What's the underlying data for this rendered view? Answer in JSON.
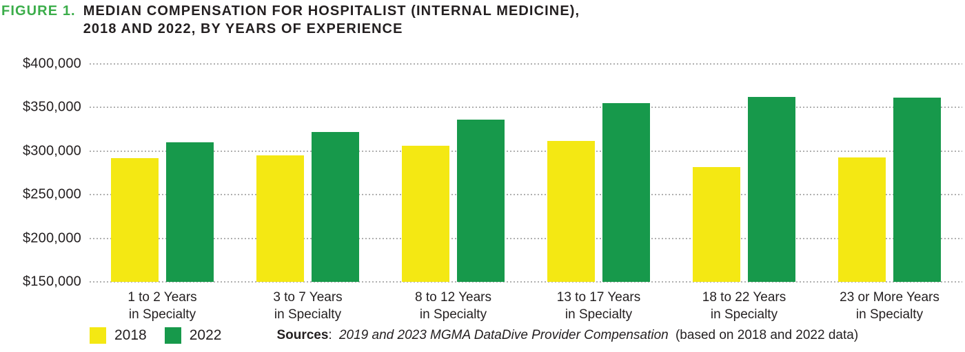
{
  "header": {
    "figure_label": "FIGURE 1.",
    "title_line1": "MEDIAN COMPENSATION FOR HOSPITALIST (INTERNAL MEDICINE),",
    "title_line2": "2018 AND 2022, BY YEARS OF EXPERIENCE"
  },
  "footer": {
    "sources_label": "Sources",
    "sources_colon": ":",
    "sources_italic": "2019 and 2023 MGMA DataDive Provider Compensation",
    "sources_suffix": "(based on 2018 and 2022 data)"
  },
  "colors": {
    "figure_label_green": "#3BAD4A",
    "series_2018_yellow": "#F4E813",
    "series_2022_green": "#17994B",
    "gridline_gray": "#AFAFAF",
    "text": "#231F20"
  },
  "chart_data": {
    "type": "bar",
    "title": "FIGURE 1. MEDIAN COMPENSATION FOR HOSPITALIST (INTERNAL MEDICINE), 2018 AND 2022, BY YEARS OF EXPERIENCE",
    "xlabel": "",
    "ylabel": "",
    "ylim": [
      150000,
      400000
    ],
    "grid": "horizontal-dotted",
    "legend_position": "bottom-left",
    "categories": [
      {
        "line1": "1 to 2 Years",
        "line2": "in Specialty"
      },
      {
        "line1": "3 to 7 Years",
        "line2": "in Specialty"
      },
      {
        "line1": "8 to 12 Years",
        "line2": "in Specialty"
      },
      {
        "line1": "13 to 17 Years",
        "line2": "in Specialty"
      },
      {
        "line1": "18 to 22 Years",
        "line2": "in Specialty"
      },
      {
        "line1": "23 or More Years",
        "line2": "in Specialty"
      }
    ],
    "series": [
      {
        "name": "2018",
        "color": "#F4E813",
        "values": [
          292000,
          295000,
          306000,
          312000,
          282000,
          293000
        ]
      },
      {
        "name": "2022",
        "color": "#17994B",
        "values": [
          310000,
          322000,
          336000,
          355000,
          362000,
          361000
        ]
      }
    ],
    "yticks": [
      {
        "value": 400000,
        "label": "$400,000"
      },
      {
        "value": 350000,
        "label": "$350,000"
      },
      {
        "value": 300000,
        "label": "$300,000"
      },
      {
        "value": 250000,
        "label": "$250,000"
      },
      {
        "value": 200000,
        "label": "$200,000"
      },
      {
        "value": 150000,
        "label": "$150,000"
      }
    ]
  }
}
